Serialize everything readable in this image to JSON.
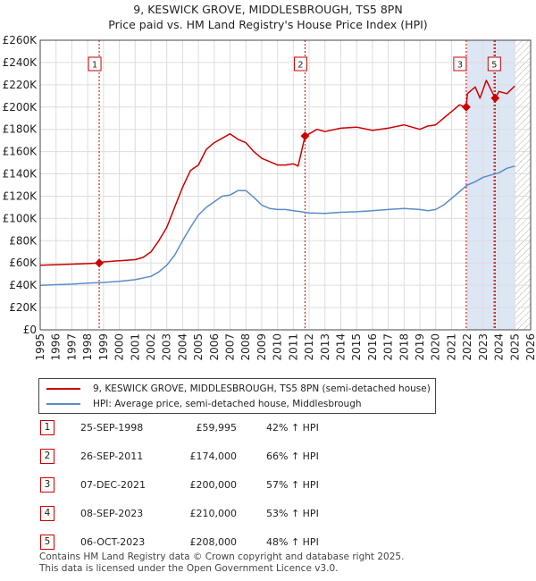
{
  "title_line1": "9, KESWICK GROVE, MIDDLESBROUGH, TS5 8PN",
  "title_line2": "Price paid vs. HM Land Registry's House Price Index (HPI)",
  "chart_data": {
    "type": "line",
    "xlim": [
      1995,
      2026
    ],
    "ylim": [
      0,
      260000
    ],
    "x_ticks": [
      1995,
      1996,
      1997,
      1998,
      1999,
      2000,
      2001,
      2002,
      2003,
      2004,
      2005,
      2006,
      2007,
      2008,
      2009,
      2010,
      2011,
      2012,
      2013,
      2014,
      2015,
      2016,
      2017,
      2018,
      2019,
      2020,
      2021,
      2022,
      2023,
      2024,
      2025,
      2026
    ],
    "y_ticks": [
      0,
      20000,
      40000,
      60000,
      80000,
      100000,
      120000,
      140000,
      160000,
      180000,
      200000,
      220000,
      240000,
      260000
    ],
    "y_tick_labels": [
      "£0",
      "£20K",
      "£40K",
      "£60K",
      "£80K",
      "£100K",
      "£120K",
      "£140K",
      "£160K",
      "£180K",
      "£200K",
      "£220K",
      "£240K",
      "£260K"
    ],
    "grid": true,
    "colors": {
      "property": "#cc0000",
      "hpi": "#5b8cc8",
      "vline": "#cc0000",
      "shade": "#dde6f4",
      "hatch": "#b0b0b0",
      "grid": "#dddddd"
    },
    "shaded_region": [
      2022.0,
      2025.0
    ],
    "hatched_region": [
      2025.0,
      2026.0
    ],
    "series": [
      {
        "name": "9, KESWICK GROVE, MIDDLESBROUGH, TS5 8PN (semi-detached house)",
        "key": "property",
        "x": [
          1995,
          1996,
          1997,
          1998,
          1998.73,
          1999,
          2000,
          2001,
          2001.5,
          2002,
          2002.5,
          2003,
          2003.5,
          2004,
          2004.5,
          2005,
          2005.5,
          2006,
          2006.5,
          2007,
          2007.5,
          2008,
          2008.5,
          2009,
          2009.5,
          2010,
          2010.5,
          2011,
          2011.3,
          2011.74,
          2012,
          2012.5,
          2013,
          2014,
          2015,
          2016,
          2017,
          2018,
          2019,
          2019.5,
          2020,
          2020.5,
          2021,
          2021.5,
          2021.93,
          2022,
          2022.5,
          2022.8,
          2023,
          2023.2,
          2023.69,
          2023.76,
          2024,
          2024.5,
          2025
        ],
        "values": [
          58000,
          58500,
          59000,
          59500,
          59995,
          61000,
          62000,
          63000,
          65000,
          70000,
          80000,
          92000,
          110000,
          128000,
          143000,
          148000,
          162000,
          168000,
          172000,
          176000,
          171000,
          168000,
          160000,
          154000,
          151000,
          148000,
          148000,
          149000,
          147000,
          174000,
          176000,
          180000,
          178000,
          181000,
          182000,
          179000,
          181000,
          184000,
          180000,
          183000,
          184000,
          190000,
          196000,
          202000,
          200000,
          212000,
          218000,
          208000,
          216000,
          224000,
          210000,
          208000,
          214000,
          212000,
          219000
        ]
      },
      {
        "name": "HPI: Average price, semi-detached house, Middlesbrough",
        "key": "hpi",
        "x": [
          1995,
          1996,
          1997,
          1998,
          1999,
          2000,
          2001,
          2002,
          2002.5,
          2003,
          2003.5,
          2004,
          2004.5,
          2005,
          2005.5,
          2006,
          2006.5,
          2007,
          2007.5,
          2008,
          2008.5,
          2009,
          2009.5,
          2010,
          2010.5,
          2011,
          2011.5,
          2012,
          2013,
          2014,
          2015,
          2016,
          2017,
          2018,
          2019,
          2019.5,
          2020,
          2020.5,
          2021,
          2021.5,
          2022,
          2022.5,
          2023,
          2023.5,
          2024,
          2024.5,
          2025
        ],
        "values": [
          40000,
          40500,
          41000,
          42000,
          42500,
          43500,
          45000,
          48000,
          52000,
          58000,
          67000,
          80000,
          92000,
          103000,
          110000,
          115000,
          120000,
          121000,
          125000,
          125000,
          119000,
          112000,
          109000,
          108000,
          108000,
          107000,
          106000,
          105000,
          104500,
          105500,
          106000,
          107000,
          108000,
          109000,
          108000,
          107000,
          108000,
          112000,
          118000,
          124000,
          130000,
          133000,
          137000,
          139000,
          141000,
          145000,
          147000
        ]
      }
    ],
    "sales": [
      {
        "label": "1",
        "x": 1998.73,
        "price": 59995,
        "marker": true
      },
      {
        "label": "2",
        "x": 2011.74,
        "price": 174000,
        "marker": true
      },
      {
        "label": "3",
        "x": 2021.93,
        "price": 200000,
        "marker": true
      },
      {
        "label": "4",
        "x": 2023.69,
        "price": 210000,
        "marker": false
      },
      {
        "label": "5",
        "x": 2023.76,
        "price": 208000,
        "marker": true
      }
    ]
  },
  "legend": {
    "property": "9, KESWICK GROVE, MIDDLESBROUGH, TS5 8PN (semi-detached house)",
    "hpi": "HPI: Average price, semi-detached house, Middlesbrough"
  },
  "sales_table": [
    {
      "num": "1",
      "date": "25-SEP-1998",
      "price": "£59,995",
      "hpi": "42% ↑ HPI"
    },
    {
      "num": "2",
      "date": "26-SEP-2011",
      "price": "£174,000",
      "hpi": "66% ↑ HPI"
    },
    {
      "num": "3",
      "date": "07-DEC-2021",
      "price": "£200,000",
      "hpi": "57% ↑ HPI"
    },
    {
      "num": "4",
      "date": "08-SEP-2023",
      "price": "£210,000",
      "hpi": "53% ↑ HPI"
    },
    {
      "num": "5",
      "date": "06-OCT-2023",
      "price": "£208,000",
      "hpi": "48% ↑ HPI"
    }
  ],
  "footer_line1": "Contains HM Land Registry data © Crown copyright and database right 2025.",
  "footer_line2": "This data is licensed under the Open Government Licence v3.0."
}
